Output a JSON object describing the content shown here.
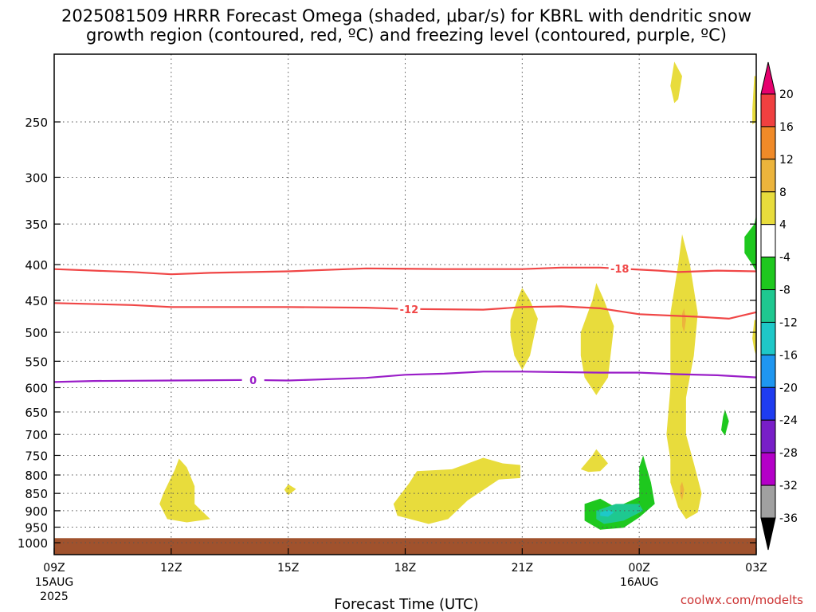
{
  "chart_data": {
    "type": "heatmap",
    "title_line1": "2025081509 HRRR Forecast Omega (shaded, μbar/s) for KBRL with dendritic snow",
    "title_line2": "growth region (contoured, red, ºC) and freezing level (contoured, purple, ºC)",
    "xlabel": "Forecast Time (UTC)",
    "ylabel": "",
    "credit": "coolwx.com/modelts",
    "x_ticks": [
      {
        "hour": 0,
        "label": "09Z",
        "sub1": "15AUG",
        "sub2": "2025"
      },
      {
        "hour": 3,
        "label": "12Z",
        "sub1": "",
        "sub2": ""
      },
      {
        "hour": 6,
        "label": "15Z",
        "sub1": "",
        "sub2": ""
      },
      {
        "hour": 9,
        "label": "18Z",
        "sub1": "",
        "sub2": ""
      },
      {
        "hour": 12,
        "label": "21Z",
        "sub1": "",
        "sub2": ""
      },
      {
        "hour": 15,
        "label": "00Z",
        "sub1": "16AUG",
        "sub2": ""
      },
      {
        "hour": 18,
        "label": "03Z",
        "sub1": "",
        "sub2": ""
      }
    ],
    "x_range_hours": [
      0,
      18
    ],
    "y_ticks": [
      250,
      300,
      350,
      400,
      450,
      500,
      550,
      600,
      650,
      700,
      750,
      800,
      850,
      900,
      950,
      1000
    ],
    "y_range_hPa": [
      200,
      1040
    ],
    "y_scale": "log",
    "grid": true,
    "colorbar": {
      "labels": [
        "20",
        "16",
        "12",
        "8",
        "4",
        "-4",
        "-8",
        "-12",
        "-16",
        "-20",
        "-24",
        "-28",
        "-32",
        "-36"
      ],
      "colors_top_to_bottom": [
        "#e6006e",
        "#f04040",
        "#f08a28",
        "#ecb43c",
        "#e8dc3c",
        "#ffffff",
        "#1ec81e",
        "#1ec890",
        "#1ec8c8",
        "#1e96f0",
        "#1e3cf0",
        "#781ec8",
        "#b400c8",
        "#a0a0a0",
        "#000000"
      ]
    },
    "contours": [
      {
        "name": "-18",
        "color": "#f04646",
        "label": "-18",
        "label_hour": 14.5,
        "points": [
          [
            0,
            406
          ],
          [
            2,
            410
          ],
          [
            3,
            413
          ],
          [
            4,
            411
          ],
          [
            6,
            409
          ],
          [
            8,
            405
          ],
          [
            10,
            406
          ],
          [
            12,
            406
          ],
          [
            13,
            404
          ],
          [
            14,
            404
          ],
          [
            15.5,
            408
          ],
          [
            16,
            410
          ],
          [
            17,
            408
          ],
          [
            18,
            409
          ]
        ]
      },
      {
        "name": "-12",
        "color": "#f04646",
        "label": "-12",
        "label_hour": 9.1,
        "points": [
          [
            0,
            454
          ],
          [
            2,
            457
          ],
          [
            3,
            460
          ],
          [
            6,
            460
          ],
          [
            8,
            461
          ],
          [
            9,
            463
          ],
          [
            11,
            464
          ],
          [
            12,
            460
          ],
          [
            13,
            459
          ],
          [
            14,
            462
          ],
          [
            15,
            471
          ],
          [
            16.5,
            475
          ],
          [
            17.3,
            478
          ],
          [
            18,
            468
          ]
        ]
      },
      {
        "name": "0",
        "color": "#9a1ec8",
        "label": "0",
        "label_hour": 5.1,
        "points": [
          [
            0,
            589
          ],
          [
            1,
            587
          ],
          [
            3,
            586
          ],
          [
            5,
            585
          ],
          [
            6,
            586
          ],
          [
            8,
            581
          ],
          [
            9,
            575
          ],
          [
            10,
            573
          ],
          [
            11,
            569
          ],
          [
            12,
            569
          ],
          [
            14,
            571
          ],
          [
            15,
            571
          ],
          [
            16,
            574
          ],
          [
            17,
            576
          ],
          [
            18,
            580
          ]
        ]
      }
    ],
    "omega_regions": [
      {
        "value_bin": "4 to 8",
        "color": "#e8dc3c",
        "points": [
          [
            2.8,
            850
          ],
          [
            3.1,
            785
          ],
          [
            3.2,
            758
          ],
          [
            3.4,
            780
          ],
          [
            3.6,
            830
          ],
          [
            3.6,
            880
          ],
          [
            4.0,
            925
          ],
          [
            3.4,
            935
          ],
          [
            2.9,
            925
          ],
          [
            2.7,
            880
          ]
        ]
      },
      {
        "value_bin": "4 to 8",
        "color": "#e8dc3c",
        "points": [
          [
            5.9,
            840
          ],
          [
            6.0,
            825
          ],
          [
            6.2,
            838
          ],
          [
            6.0,
            855
          ]
        ]
      },
      {
        "value_bin": "4 to 8",
        "color": "#e8dc3c",
        "points": [
          [
            8.7,
            880
          ],
          [
            9.1,
            822
          ],
          [
            9.3,
            790
          ],
          [
            10.2,
            785
          ],
          [
            11.0,
            756
          ],
          [
            11.5,
            770
          ],
          [
            11.95,
            774
          ],
          [
            11.95,
            808
          ],
          [
            11.4,
            812
          ],
          [
            10.6,
            870
          ],
          [
            10.1,
            925
          ],
          [
            9.6,
            940
          ],
          [
            8.8,
            915
          ]
        ]
      },
      {
        "value_bin": "4 to 8",
        "color": "#e8dc3c",
        "points": [
          [
            11.7,
            480
          ],
          [
            11.9,
            445
          ],
          [
            12.0,
            432
          ],
          [
            12.2,
            450
          ],
          [
            12.4,
            478
          ],
          [
            12.2,
            540
          ],
          [
            12.0,
            566
          ],
          [
            11.8,
            540
          ],
          [
            11.7,
            505
          ]
        ]
      },
      {
        "value_bin": "4 to 8",
        "color": "#e8dc3c",
        "points": [
          [
            13.5,
            500
          ],
          [
            13.8,
            450
          ],
          [
            13.9,
            425
          ],
          [
            14.1,
            450
          ],
          [
            14.35,
            490
          ],
          [
            14.2,
            580
          ],
          [
            13.9,
            615
          ],
          [
            13.6,
            580
          ],
          [
            13.5,
            540
          ]
        ]
      },
      {
        "value_bin": "4 to 8",
        "color": "#e8dc3c",
        "points": [
          [
            13.5,
            785
          ],
          [
            13.8,
            750
          ],
          [
            13.9,
            735
          ],
          [
            14.2,
            770
          ],
          [
            14.0,
            790
          ],
          [
            13.7,
            792
          ]
        ]
      },
      {
        "value_bin": "4 to 8",
        "color": "#e8dc3c",
        "points": [
          [
            15.8,
            470
          ],
          [
            16.0,
            400
          ],
          [
            16.1,
            362
          ],
          [
            16.3,
            400
          ],
          [
            16.5,
            470
          ],
          [
            16.4,
            540
          ],
          [
            16.2,
            620
          ],
          [
            16.2,
            700
          ],
          [
            16.4,
            770
          ],
          [
            16.6,
            850
          ],
          [
            16.5,
            905
          ],
          [
            16.2,
            925
          ],
          [
            16.0,
            890
          ],
          [
            15.8,
            820
          ],
          [
            15.8,
            760
          ],
          [
            15.7,
            700
          ],
          [
            15.8,
            600
          ],
          [
            15.8,
            540
          ]
        ]
      },
      {
        "value_bin": "4 to 8",
        "color": "#e8dc3c",
        "points": [
          [
            15.8,
            222
          ],
          [
            15.9,
            205
          ],
          [
            16.1,
            215
          ],
          [
            16.0,
            232
          ],
          [
            15.9,
            235
          ]
        ]
      },
      {
        "value_bin": "4 to 8",
        "color": "#e8dc3c",
        "points": [
          [
            17.9,
            240
          ],
          [
            17.95,
            215
          ],
          [
            18,
            215
          ],
          [
            18,
            250
          ],
          [
            17.9,
            252
          ]
        ]
      },
      {
        "value_bin": "4 to 8",
        "color": "#e8dc3c",
        "points": [
          [
            17.95,
            480
          ],
          [
            18,
            480
          ],
          [
            18,
            540
          ],
          [
            17.95,
            530
          ],
          [
            17.9,
            510
          ]
        ]
      },
      {
        "value_bin": "8 to 12",
        "color": "#ecb43c",
        "points": [
          [
            16.1,
            470
          ],
          [
            16.15,
            462
          ],
          [
            16.2,
            480
          ],
          [
            16.15,
            500
          ],
          [
            16.1,
            490
          ]
        ]
      },
      {
        "value_bin": "8 to 12",
        "color": "#ecb43c",
        "points": [
          [
            16.05,
            830
          ],
          [
            16.1,
            818
          ],
          [
            16.15,
            840
          ],
          [
            16.1,
            870
          ],
          [
            16.05,
            855
          ]
        ]
      },
      {
        "value_bin": "-4 to -8",
        "color": "#1ec81e",
        "points": [
          [
            14.4,
            890
          ],
          [
            15.0,
            860
          ],
          [
            15.0,
            780
          ],
          [
            15.1,
            750
          ],
          [
            15.3,
            820
          ],
          [
            15.4,
            880
          ],
          [
            15.0,
            920
          ],
          [
            14.6,
            952
          ],
          [
            14.0,
            958
          ],
          [
            13.6,
            930
          ],
          [
            13.6,
            880
          ],
          [
            14.0,
            865
          ]
        ]
      },
      {
        "value_bin": "-4 to -8",
        "color": "#1ec81e",
        "points": [
          [
            17.95,
            350
          ],
          [
            18,
            340
          ],
          [
            18,
            410
          ],
          [
            17.9,
            400
          ],
          [
            17.7,
            385
          ],
          [
            17.7,
            365
          ]
        ]
      },
      {
        "value_bin": "-4 to -8",
        "color": "#1ec81e",
        "points": [
          [
            17.15,
            660
          ],
          [
            17.2,
            645
          ],
          [
            17.3,
            670
          ],
          [
            17.2,
            703
          ],
          [
            17.1,
            690
          ]
        ]
      },
      {
        "value_bin": "-8 to -12",
        "color": "#1ec890",
        "points": [
          [
            13.9,
            900
          ],
          [
            14.4,
            880
          ],
          [
            15.0,
            880
          ],
          [
            15.1,
            900
          ],
          [
            14.6,
            930
          ],
          [
            14.1,
            940
          ],
          [
            13.9,
            925
          ]
        ]
      },
      {
        "value_bin": "-12 to -16",
        "color": "#1ec8c8",
        "points": [
          [
            14.0,
            905
          ],
          [
            14.2,
            898
          ],
          [
            14.35,
            905
          ],
          [
            14.2,
            918
          ],
          [
            14.0,
            915
          ]
        ]
      }
    ],
    "surface_bar": {
      "color": "#a0522d",
      "from_hPa": 985,
      "label": "terrain"
    }
  }
}
